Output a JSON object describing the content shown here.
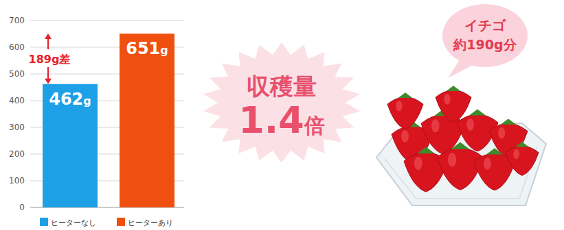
{
  "chart_data": {
    "type": "bar",
    "categories": [
      "ヒーターなし",
      "ヒーターあり"
    ],
    "values": [
      462,
      651
    ],
    "value_labels": [
      "462g",
      "651g"
    ],
    "colors": [
      "#1ea0e6",
      "#f0500f"
    ],
    "ylim": [
      0,
      700
    ],
    "yticks": [
      0,
      100,
      200,
      300,
      400,
      500,
      600,
      700
    ],
    "grid": true,
    "data_labels": true,
    "legend": "bottom",
    "tick_labels": "y",
    "annotations": [
      "189g差",
      "収穫量",
      "1.4倍",
      "イチゴ",
      "約190g分"
    ]
  }
}
